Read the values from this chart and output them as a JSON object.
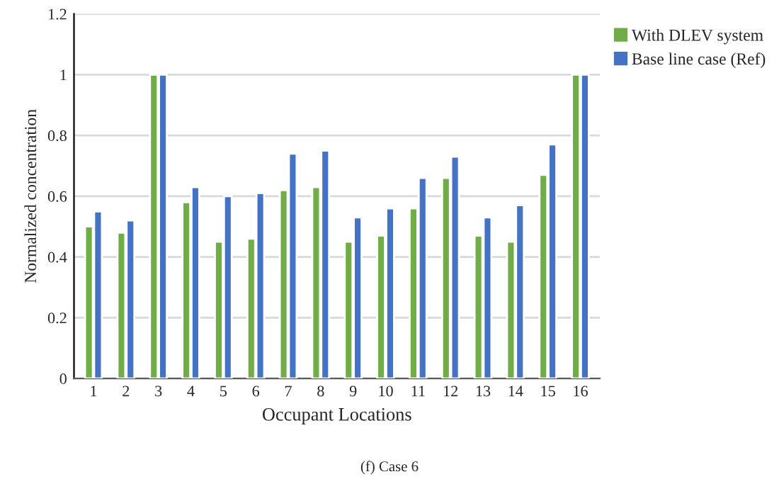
{
  "chart_data": {
    "type": "bar",
    "xlabel": "Occupant Locations",
    "ylabel": "Normalized concentration",
    "categories": [
      "1",
      "2",
      "3",
      "4",
      "5",
      "6",
      "7",
      "8",
      "9",
      "10",
      "11",
      "12",
      "13",
      "14",
      "15",
      "16"
    ],
    "series": [
      {
        "name": "With DLEV system",
        "color": "#70ad47",
        "values": [
          0.5,
          0.48,
          1,
          0.58,
          0.45,
          0.46,
          0.62,
          0.63,
          0.45,
          0.47,
          0.56,
          0.66,
          0.47,
          0.45,
          0.67,
          1
        ]
      },
      {
        "name": "Base line case (Ref)",
        "color": "#4472c4",
        "values": [
          0.55,
          0.52,
          1,
          0.63,
          0.6,
          0.61,
          0.74,
          0.75,
          0.53,
          0.56,
          0.66,
          0.73,
          0.53,
          0.57,
          0.77,
          1
        ]
      }
    ],
    "ylim": [
      0,
      1.2
    ],
    "yticks": [
      0,
      0.2,
      0.4,
      0.6,
      0.8,
      1,
      1.2
    ],
    "grid": "y",
    "legend": "top right",
    "annotations": [
      "(f) Case 6"
    ]
  }
}
